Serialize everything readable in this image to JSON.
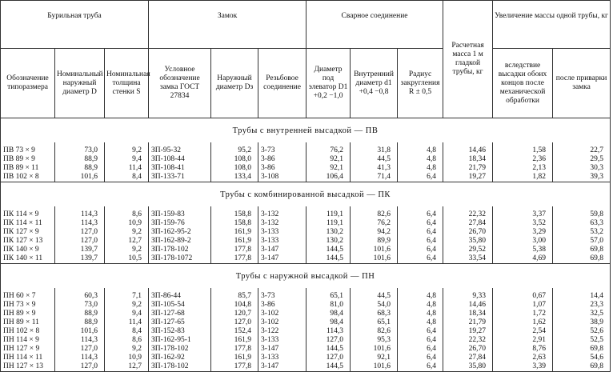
{
  "header": {
    "groups": [
      "Бурильная труба",
      "Замок",
      "Сварное соединение",
      "Расчетная масса 1 м гладкой трубы, кг",
      "Увеличение массы одной трубы, кг"
    ],
    "columns": [
      "Обозначение типоразмера",
      "Номинальный наружный диаметр D",
      "Номинальная толщина стенки S",
      "Условное обозначение замка ГОСТ 27834",
      "Наружный диаметр Dз",
      "Резьбовое соединение",
      "Диаметр под элеватор D1 +0,2 −1,0",
      "Внутренний диаметр d1 +0,4 −0,8",
      "Радиус закругления R ± 0,5",
      "вследствие высадки обоих концов после механической обработки",
      "после приварки замка"
    ]
  },
  "sections": [
    {
      "title": "Трубы с внутренней высадкой — ПВ",
      "rows": [
        [
          "ПВ 73 × 9",
          "73,0",
          "9,2",
          "ЗП-95-32",
          "95,2",
          "3-73",
          "76,2",
          "31,8",
          "4,8",
          "14,46",
          "1,58",
          "22,7"
        ],
        [
          "ПВ 89 × 9",
          "88,9",
          "9,4",
          "ЗП-108-44",
          "108,0",
          "3-86",
          "92,1",
          "44,5",
          "4,8",
          "18,34",
          "2,36",
          "29,5"
        ],
        [
          "ПВ 89 × 11",
          "88,9",
          "11,4",
          "ЗП-108-41",
          "108,0",
          "3-86",
          "92,1",
          "41,3",
          "4,8",
          "21,79",
          "2,13",
          "30,3"
        ],
        [
          "ПВ 102 × 8",
          "101,6",
          "8,4",
          "ЗП-133-71",
          "133,4",
          "3-108",
          "106,4",
          "71,4",
          "6,4",
          "19,27",
          "1,82",
          "39,3"
        ]
      ]
    },
    {
      "title": "Трубы с комбинированной высадкой — ПК",
      "rows": [
        [
          "ПК 114 × 9",
          "114,3",
          "8,6",
          "ЗП-159-83",
          "158,8",
          "3-132",
          "119,1",
          "82,6",
          "6,4",
          "22,32",
          "3,37",
          "59,8"
        ],
        [
          "ПК 114 × 11",
          "114,3",
          "10,9",
          "ЗП-159-76",
          "158,8",
          "3-132",
          "119,1",
          "76,2",
          "6,4",
          "27,84",
          "3,52",
          "63,3"
        ],
        [
          "ПК 127 × 9",
          "127,0",
          "9,2",
          "ЗП-162-95-2",
          "161,9",
          "3-133",
          "130,2",
          "94,2",
          "6,4",
          "26,70",
          "3,29",
          "53,2"
        ],
        [
          "ПК 127 × 13",
          "127,0",
          "12,7",
          "ЗП-162-89-2",
          "161,9",
          "3-133",
          "130,2",
          "89,9",
          "6,4",
          "35,80",
          "3,00",
          "57,0"
        ],
        [
          "ПК 140 × 9",
          "139,7",
          "9,2",
          "ЗП-178-102",
          "177,8",
          "3-147",
          "144,5",
          "101,6",
          "6,4",
          "29,52",
          "5,38",
          "69,8"
        ],
        [
          "ПК 140 × 11",
          "139,7",
          "10,5",
          "ЗП-178-1072",
          "177,8",
          "3-147",
          "144,5",
          "101,6",
          "6,4",
          "33,54",
          "4,69",
          "69,8"
        ]
      ]
    },
    {
      "title": "Трубы с наружной высадкой — ПН",
      "rows": [
        [
          "ПН 60 × 7",
          "60,3",
          "7,1",
          "ЗП-86-44",
          "85,7",
          "3-73",
          "65,1",
          "44,5",
          "4,8",
          "9,33",
          "0,67",
          "14,4"
        ],
        [
          "ПН 73 × 9",
          "73,0",
          "9,2",
          "ЗП-105-54",
          "104,8",
          "3-86",
          "81,0",
          "54,0",
          "4,8",
          "14,46",
          "1,07",
          "23,3"
        ],
        [
          "ПН 89 × 9",
          "88,9",
          "9,4",
          "ЗП-127-68",
          "120,7",
          "3-102",
          "98,4",
          "68,3",
          "4,8",
          "18,34",
          "1,72",
          "32,5"
        ],
        [
          "ПН 89 × 11",
          "88,9",
          "11,4",
          "ЗП-127-65",
          "127,0",
          "3-102",
          "98,4",
          "65,1",
          "4,8",
          "21,79",
          "1,62",
          "38,9"
        ],
        [
          "ПН 102 × 8",
          "101,6",
          "8,4",
          "ЗП-152-83",
          "152,4",
          "3-122",
          "114,3",
          "82,6",
          "6,4",
          "19,27",
          "2,54",
          "52,6"
        ],
        [
          "ПН 114 × 9",
          "114,3",
          "8,6",
          "ЗП-162-95-1",
          "161,9",
          "3-133",
          "127,0",
          "95,3",
          "6,4",
          "22,32",
          "2,91",
          "52,5"
        ],
        [
          "ПН 127 × 9",
          "127,0",
          "9,2",
          "ЗП-178-102",
          "177,8",
          "3-147",
          "144,5",
          "101,6",
          "6,4",
          "26,70",
          "8,76",
          "69,8"
        ],
        [
          "ПН 114 × 11",
          "114,3",
          "10,9",
          "ЗП-162-92",
          "161,9",
          "3-133",
          "127,0",
          "92,1",
          "6,4",
          "27,84",
          "2,63",
          "54,6"
        ],
        [
          "ПН 127 × 13",
          "127,0",
          "12,7",
          "ЗП-178-102",
          "177,8",
          "3-147",
          "144,5",
          "101,6",
          "6,4",
          "35,80",
          "3,39",
          "69,8"
        ]
      ]
    }
  ]
}
